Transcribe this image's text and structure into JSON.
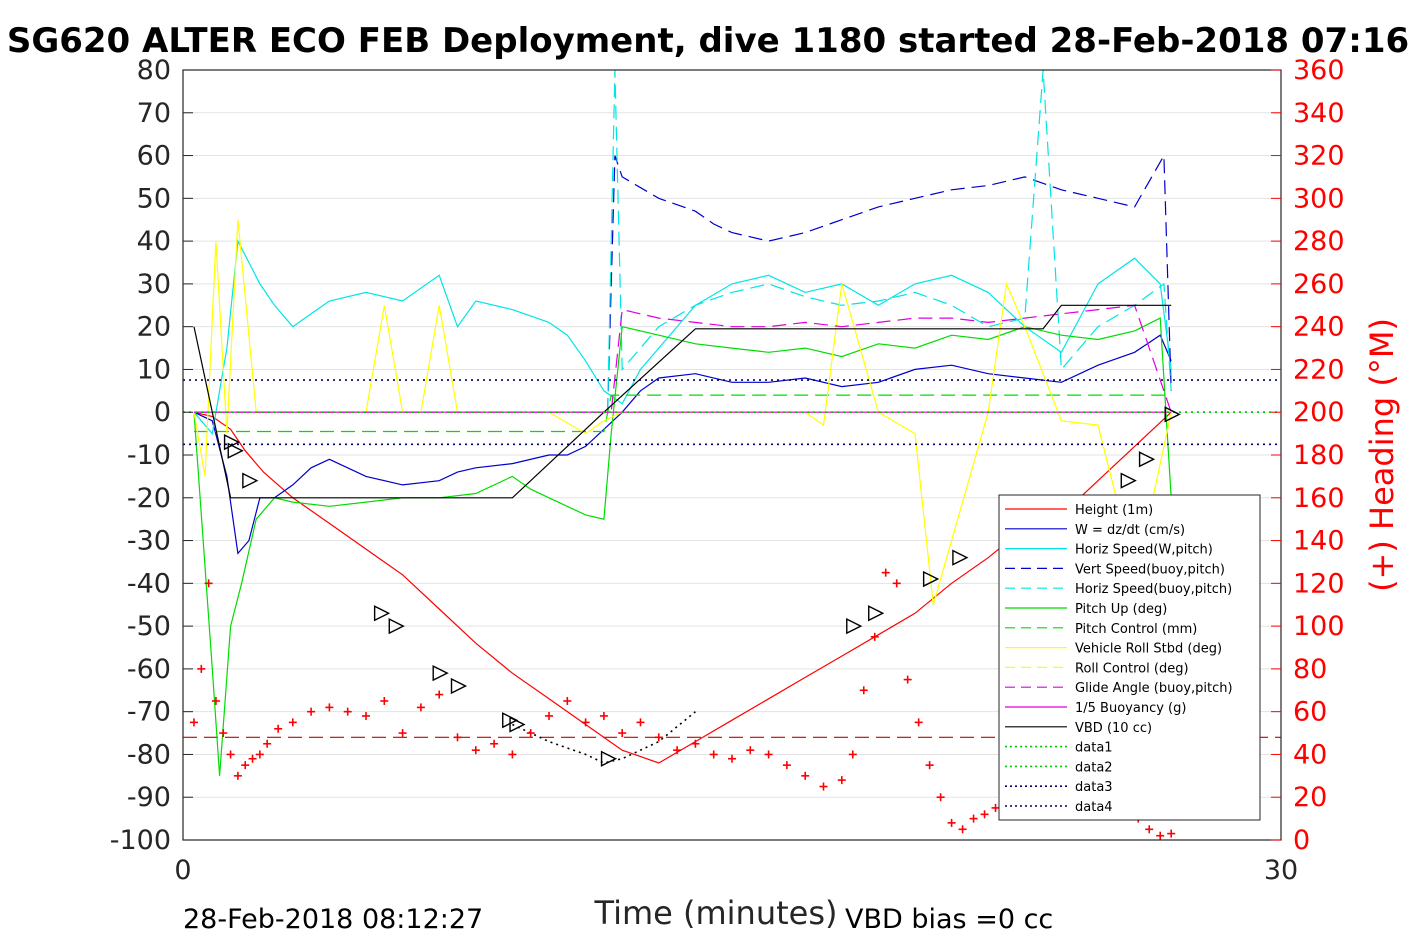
{
  "chart_data": {
    "type": "line",
    "title": "SG620 ALTER ECO FEB Deployment, dive 1180 started 28-Feb-2018 07:16",
    "xlabel": "Time (minutes)",
    "ylabel": "",
    "y2label": "(+) Heading (°M)",
    "xlim": [
      0,
      30
    ],
    "ylim": [
      -100,
      80
    ],
    "y2lim": [
      0,
      360
    ],
    "x_ticks": [
      "0",
      "30"
    ],
    "y_ticks": [
      "80",
      "70",
      "60",
      "50",
      "40",
      "30",
      "20",
      "10",
      "0",
      "-10",
      "-20",
      "-30",
      "-40",
      "-50",
      "-60",
      "-70",
      "-80",
      "-90",
      "-100"
    ],
    "y2_ticks": [
      "360",
      "340",
      "320",
      "300",
      "280",
      "260",
      "240",
      "220",
      "200",
      "180",
      "160",
      "140",
      "120",
      "100",
      "80",
      "60",
      "40",
      "20",
      "0"
    ],
    "grid": true,
    "legend_position": "lower-right",
    "footer_left": "28-Feb-2018 08:12:27",
    "footer_right": "VBD bias =0 cc",
    "legend": [
      {
        "name": "Height (1m)",
        "color": "#ff0000",
        "dash": "solid"
      },
      {
        "name": "W = dz/dt (cm/s)",
        "color": "#0000cc",
        "dash": "solid"
      },
      {
        "name": "Horiz Speed(W,pitch)",
        "color": "#00e5e5",
        "dash": "solid"
      },
      {
        "name": "Vert Speed(buoy,pitch)",
        "color": "#0000cc",
        "dash": "dashed"
      },
      {
        "name": "Horiz Speed(buoy,pitch)",
        "color": "#00e5e5",
        "dash": "dashed"
      },
      {
        "name": "Pitch Up (deg)",
        "color": "#00dd00",
        "dash": "solid"
      },
      {
        "name": "Pitch Control (mm)",
        "color": "#00dd00",
        "dash": "dashed"
      },
      {
        "name": "Vehicle Roll Stbd (deg)",
        "color": "#ffff00",
        "dash": "solid"
      },
      {
        "name": "Roll Control (deg)",
        "color": "#ffff00",
        "dash": "dashed"
      },
      {
        "name": "Glide Angle (buoy,pitch)",
        "color": "#dd00dd",
        "dash": "dashed"
      },
      {
        "name": "1/5 Buoyancy (g)",
        "color": "#dd00dd",
        "dash": "solid"
      },
      {
        "name": "VBD (10 cc)",
        "color": "#000000",
        "dash": "solid"
      },
      {
        "name": "data1",
        "color": "#00cc00",
        "dash": "dotted"
      },
      {
        "name": "data2",
        "color": "#00cc00",
        "dash": "dotted"
      },
      {
        "name": "data3",
        "color": "#000066",
        "dash": "dotted"
      },
      {
        "name": "data4",
        "color": "#000066",
        "dash": "dotted"
      }
    ],
    "series": [
      {
        "name": "Height (1m)",
        "color": "#ff0000",
        "dash": "solid",
        "x": [
          0.3,
          0.8,
          1.3,
          1.7,
          2.2,
          3.0,
          4.0,
          5.0,
          6.0,
          7.0,
          8.0,
          9.0,
          10.0,
          11.0,
          12.0,
          13.0,
          14.0,
          15.0,
          16.0,
          17.0,
          18.0,
          19.0,
          20.0,
          21.0,
          22.0,
          23.0,
          24.0,
          25.0,
          26.0,
          27.0
        ],
        "y": [
          0,
          -1,
          -4,
          -9,
          -14,
          -20,
          -26,
          -32,
          -38,
          -46,
          -54,
          -61,
          -67,
          -73,
          -79,
          -82,
          -77,
          -72,
          -67,
          -62,
          -57,
          -52,
          -47,
          -40,
          -34,
          -27,
          -24,
          -16,
          -8,
          0
        ]
      },
      {
        "name": "Height dots",
        "color": "#000000",
        "dash": "dotted",
        "x": [
          9.0,
          10.0,
          11.0,
          11.5,
          12.0,
          13.0,
          14.0
        ],
        "y": [
          -73,
          -77,
          -80,
          -82,
          -81,
          -77,
          -70
        ]
      },
      {
        "name": "W = dz/dt (cm/s)",
        "color": "#0000cc",
        "dash": "solid",
        "x": [
          0.3,
          0.8,
          1.2,
          1.5,
          1.8,
          2.1,
          2.5,
          3.0,
          3.5,
          4.0,
          5.0,
          6.0,
          7.0,
          7.5,
          8.0,
          9.0,
          10.0,
          10.5,
          11.0,
          11.5,
          12.0,
          12.5,
          13.0,
          14.0,
          15.0,
          16.0,
          17.0,
          18.0,
          19.0,
          20.0,
          21.0,
          22.0,
          23.0,
          24.0,
          25.0,
          26.0,
          26.7,
          27.0
        ],
        "y": [
          0,
          -2,
          -15,
          -33,
          -30,
          -20,
          -20,
          -17,
          -13,
          -11,
          -15,
          -17,
          -16,
          -14,
          -13,
          -12,
          -10,
          -10,
          -8,
          -4,
          0,
          5,
          8,
          9,
          7,
          7,
          8,
          6,
          7,
          10,
          11,
          9,
          8,
          7,
          11,
          14,
          18,
          12
        ]
      },
      {
        "name": "Horiz Speed(W,pitch)",
        "color": "#00e5e5",
        "dash": "solid",
        "x": [
          0.3,
          0.8,
          1.2,
          1.5,
          1.8,
          2.1,
          2.5,
          3.0,
          3.5,
          4.0,
          5.0,
          6.0,
          7.0,
          7.5,
          8.0,
          9.0,
          10.0,
          10.5,
          11.0,
          11.5,
          12.0,
          12.5,
          13.0,
          14.0,
          15.0,
          16.0,
          17.0,
          18.0,
          19.0,
          20.0,
          21.0,
          22.0,
          23.0,
          24.0,
          25.0,
          26.0,
          26.7,
          27.0
        ],
        "y": [
          0,
          -5,
          15,
          40,
          35,
          30,
          25,
          20,
          23,
          26,
          28,
          26,
          32,
          20,
          26,
          24,
          21,
          18,
          12,
          5,
          2,
          10,
          15,
          25,
          30,
          32,
          28,
          30,
          25,
          30,
          32,
          28,
          20,
          14,
          30,
          36,
          30,
          10
        ]
      },
      {
        "name": "Vert Speed(buoy,pitch)",
        "color": "#0000cc",
        "dash": "dashed",
        "x": [
          11.6,
          11.8,
          12.0,
          13.0,
          14.0,
          14.5,
          15.0,
          16.0,
          17.0,
          18.0,
          19.0,
          20.0,
          21.0,
          22.0,
          23.0,
          24.0,
          25.0,
          26.0,
          26.8,
          27.0
        ],
        "y": [
          0,
          60,
          55,
          50,
          47,
          44,
          42,
          40,
          42,
          45,
          48,
          50,
          52,
          53,
          55,
          52,
          50,
          48,
          60,
          5
        ]
      },
      {
        "name": "Horiz Speed(buoy,pitch)",
        "color": "#00e5e5",
        "dash": "dashed",
        "x": [
          11.6,
          11.8,
          12.0,
          13.0,
          14.0,
          15.0,
          16.0,
          17.0,
          18.0,
          19.0,
          20.0,
          21.0,
          22.0,
          23.0,
          23.5,
          24.0,
          25.0,
          26.0,
          26.8,
          27.0
        ],
        "y": [
          0,
          80,
          10,
          20,
          25,
          28,
          30,
          27,
          25,
          26,
          28,
          25,
          20,
          22,
          80,
          10,
          20,
          25,
          30,
          5
        ]
      },
      {
        "name": "Pitch Up (deg)",
        "color": "#00dd00",
        "dash": "solid",
        "x": [
          0.3,
          0.8,
          1.0,
          1.3,
          1.6,
          2.0,
          2.5,
          3.0,
          4.0,
          5.0,
          6.0,
          7.0,
          8.0,
          9.0,
          9.5,
          10.0,
          11.0,
          11.5,
          11.7,
          12.0,
          13.0,
          14.0,
          15.0,
          16.0,
          17.0,
          18.0,
          19.0,
          20.0,
          21.0,
          22.0,
          23.0,
          24.0,
          25.0,
          26.0,
          26.7,
          27.0
        ],
        "y": [
          0,
          -60,
          -85,
          -50,
          -40,
          -25,
          -20,
          -21,
          -22,
          -21,
          -20,
          -20,
          -19,
          -15,
          -18,
          -20,
          -24,
          -25,
          -5,
          20,
          18,
          16,
          15,
          14,
          15,
          13,
          16,
          15,
          18,
          17,
          20,
          18,
          17,
          19,
          22,
          -20
        ]
      },
      {
        "name": "Pitch Control (mm)",
        "color": "#00dd00",
        "dash": "dashed",
        "x": [
          0.3,
          11.5,
          11.7,
          27.0
        ],
        "y": [
          -4.5,
          -4.5,
          4,
          4
        ]
      },
      {
        "name": "Vehicle Roll Stbd (deg)",
        "color": "#ffff00",
        "dash": "solid",
        "x": [
          0.3,
          0.6,
          0.9,
          1.2,
          1.5,
          2.0,
          3.0,
          4.0,
          5.0,
          5.5,
          6.0,
          6.5,
          7.0,
          7.5,
          8.0,
          9.0,
          10.0,
          11.0,
          11.5,
          12.0,
          13.0,
          14.0,
          15.0,
          16.0,
          17.0,
          17.5,
          18.0,
          19.0,
          20.0,
          20.5,
          21.0,
          22.0,
          22.5,
          23.0,
          24.0,
          25.0,
          25.5,
          26.0,
          26.5,
          27.0
        ],
        "y": [
          0,
          -15,
          40,
          -5,
          45,
          0,
          0,
          0,
          0,
          25,
          0,
          0,
          25,
          0,
          0,
          0,
          0,
          -5,
          -2,
          0,
          0,
          0,
          0,
          0,
          0,
          -3,
          30,
          0,
          -5,
          -45,
          -30,
          0,
          30,
          20,
          -2,
          -3,
          -20,
          -40,
          -20,
          0
        ]
      },
      {
        "name": "Roll Control (deg)",
        "color": "#ffff00",
        "dash": "dashed",
        "x": [
          0.3,
          27.0
        ],
        "y": [
          0,
          0
        ]
      },
      {
        "name": "Glide Angle (buoy,pitch)",
        "color": "#dd00dd",
        "dash": "dashed",
        "x": [
          0.3,
          11.5,
          11.7,
          12.0,
          13.0,
          14.0,
          15.0,
          16.0,
          17.0,
          18.0,
          19.0,
          20.0,
          21.0,
          22.0,
          23.0,
          24.0,
          25.0,
          26.0,
          27.0
        ],
        "y": [
          0,
          0,
          0,
          24,
          22,
          21,
          20,
          20,
          21,
          20,
          21,
          22,
          22,
          21,
          22,
          23,
          24,
          25,
          0
        ]
      },
      {
        "name": "1/5 Buoyancy (g)",
        "color": "#dd00dd",
        "dash": "solid",
        "x": [
          0.3,
          11.5,
          27.0
        ],
        "y": [
          0,
          0,
          0
        ]
      },
      {
        "name": "VBD (10 cc)",
        "color": "#000000",
        "dash": "solid",
        "x": [
          0.3,
          1.3,
          9.0,
          11.5,
          14.0,
          23.5,
          24.0,
          27.0
        ],
        "y": [
          20,
          -20,
          -20,
          0,
          19.5,
          19.5,
          25,
          25
        ]
      },
      {
        "name": "data1",
        "color": "#00cc00",
        "dash": "dotted",
        "x": [
          0,
          30
        ],
        "y": [
          0,
          0
        ]
      },
      {
        "name": "data2",
        "color": "#00cc00",
        "dash": "dotted",
        "x": [
          0,
          30
        ],
        "y": [
          0,
          0
        ]
      },
      {
        "name": "data3",
        "color": "#000066",
        "dash": "dotted",
        "x": [
          0,
          30
        ],
        "y": [
          7.5,
          7.5
        ]
      },
      {
        "name": "data4",
        "color": "#000066",
        "dash": "dotted",
        "x": [
          0,
          30
        ],
        "y": [
          -7.5,
          -7.5
        ]
      }
    ],
    "heading_reference": {
      "name": "Heading reference",
      "color": "#cc0000",
      "dash": "dashed",
      "y2": 48
    },
    "heading": {
      "name": "(+) Heading",
      "color": "#ff0000",
      "marker": "+",
      "x": [
        0.3,
        0.5,
        0.7,
        0.9,
        1.1,
        1.3,
        1.5,
        1.7,
        1.9,
        2.1,
        2.3,
        2.6,
        3.0,
        3.5,
        4.0,
        4.5,
        5.0,
        5.5,
        6.0,
        6.5,
        7.0,
        7.5,
        8.0,
        8.5,
        9.0,
        9.5,
        10.0,
        10.5,
        11.0,
        11.5,
        12.0,
        12.5,
        13.0,
        13.5,
        14.0,
        14.5,
        15.0,
        15.5,
        16.0,
        16.5,
        17.0,
        17.5,
        18.0,
        18.3,
        18.6,
        18.9,
        19.2,
        19.5,
        19.8,
        20.1,
        20.4,
        20.7,
        21.0,
        21.3,
        21.6,
        21.9,
        22.2,
        22.5,
        22.8,
        23.1,
        23.4,
        23.7,
        24.0,
        24.3,
        24.6,
        24.9,
        25.2,
        25.5,
        25.8,
        26.1,
        26.4,
        26.7,
        27.0
      ],
      "y2": [
        55,
        80,
        120,
        65,
        50,
        40,
        30,
        35,
        38,
        40,
        45,
        52,
        55,
        60,
        62,
        60,
        58,
        65,
        50,
        62,
        68,
        48,
        42,
        45,
        40,
        50,
        58,
        65,
        55,
        58,
        50,
        55,
        48,
        42,
        45,
        40,
        38,
        42,
        40,
        35,
        30,
        25,
        28,
        40,
        70,
        95,
        125,
        120,
        75,
        55,
        35,
        20,
        8,
        5,
        10,
        12,
        15,
        20,
        30,
        55,
        80,
        120,
        95,
        70,
        40,
        30,
        25,
        20,
        15,
        10,
        5,
        2,
        3
      ]
    },
    "triangle_markers": [
      {
        "x": 1.3,
        "y": -7
      },
      {
        "x": 1.4,
        "y": -9
      },
      {
        "x": 1.8,
        "y": -16
      },
      {
        "x": 5.4,
        "y": -47
      },
      {
        "x": 5.8,
        "y": -50
      },
      {
        "x": 7.0,
        "y": -61
      },
      {
        "x": 7.5,
        "y": -64
      },
      {
        "x": 8.9,
        "y": -72
      },
      {
        "x": 9.1,
        "y": -73
      },
      {
        "x": 11.6,
        "y": -81
      },
      {
        "x": 18.3,
        "y": -50
      },
      {
        "x": 18.9,
        "y": -47
      },
      {
        "x": 20.4,
        "y": -39
      },
      {
        "x": 21.2,
        "y": -34
      },
      {
        "x": 22.6,
        "y": -27
      },
      {
        "x": 25.8,
        "y": -16
      },
      {
        "x": 26.3,
        "y": -11
      },
      {
        "x": 27.0,
        "y": -0.5
      }
    ]
  }
}
